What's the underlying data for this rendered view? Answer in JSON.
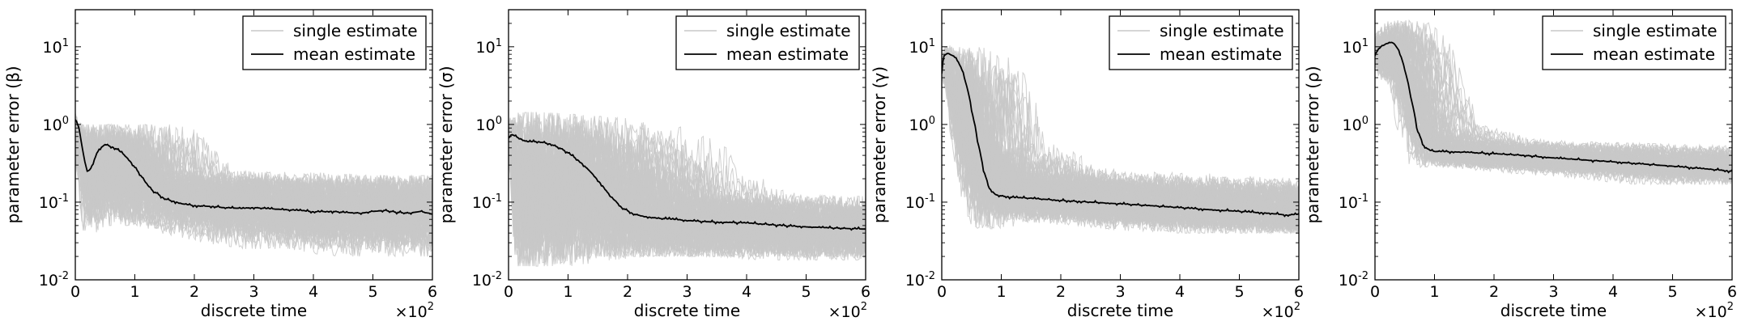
{
  "figure": {
    "xlabel": "discrete time",
    "x_multiplier": "×10",
    "x_multiplier_exp": "2",
    "legend": {
      "single": "single estimate",
      "mean": "mean estimate"
    },
    "colors": {
      "single": "#c8c8c8",
      "mean": "#000000",
      "axes": "#000000"
    }
  },
  "chart_data": [
    {
      "type": "line",
      "ylabel": "parameter error (β)",
      "xlabel": "discrete time",
      "x_ticks": [
        0,
        1,
        2,
        3,
        4,
        5,
        6
      ],
      "xlim": [
        0,
        6
      ],
      "ylim": [
        0.01,
        30
      ],
      "yscale": "log",
      "y_ticks": [
        {
          "value": 0.01,
          "base": "10",
          "exp": "-2"
        },
        {
          "value": 0.1,
          "base": "10",
          "exp": "-1"
        },
        {
          "value": 1,
          "base": "10",
          "exp": "0"
        },
        {
          "value": 10,
          "base": "10",
          "exp": "1"
        }
      ],
      "legend_position": "top-right",
      "series": [
        {
          "name": "mean estimate",
          "x": [
            0,
            0.05,
            0.1,
            0.15,
            0.2,
            0.25,
            0.3,
            0.4,
            0.5,
            0.6,
            0.7,
            0.8,
            0.9,
            1.0,
            1.1,
            1.2,
            1.3,
            1.4,
            1.5,
            1.6,
            1.8,
            2.0,
            2.3,
            2.5,
            2.8,
            3.0,
            3.3,
            3.5,
            3.8,
            4.0,
            4.3,
            4.5,
            4.8,
            5.0,
            5.2,
            5.4,
            5.6,
            5.8,
            6.0
          ],
          "y": [
            1.2,
            0.95,
            0.6,
            0.35,
            0.25,
            0.26,
            0.32,
            0.48,
            0.55,
            0.52,
            0.48,
            0.42,
            0.35,
            0.28,
            0.22,
            0.17,
            0.14,
            0.125,
            0.11,
            0.105,
            0.095,
            0.09,
            0.088,
            0.085,
            0.083,
            0.085,
            0.082,
            0.08,
            0.078,
            0.075,
            0.076,
            0.074,
            0.072,
            0.076,
            0.078,
            0.074,
            0.072,
            0.076,
            0.07
          ]
        }
      ],
      "single_estimates": {
        "name": "single estimate",
        "count": 90,
        "x": [
          0,
          0.1,
          0.15,
          0.2,
          0.3,
          0.5,
          0.7,
          0.9,
          1.1,
          1.3,
          1.5,
          2,
          3,
          4,
          5,
          6
        ],
        "upper": [
          1.4,
          1.0,
          1.0,
          1.0,
          1.0,
          1.0,
          1.0,
          1.0,
          0.9,
          0.5,
          0.25,
          0.25,
          0.22,
          0.2,
          0.2,
          0.22
        ],
        "lower": [
          0.3,
          0.1,
          0.04,
          0.04,
          0.05,
          0.06,
          0.05,
          0.05,
          0.05,
          0.05,
          0.05,
          0.04,
          0.03,
          0.025,
          0.025,
          0.02
        ]
      }
    },
    {
      "type": "line",
      "ylabel": "parameter error (σ)",
      "xlabel": "discrete time",
      "x_ticks": [
        0,
        1,
        2,
        3,
        4,
        5,
        6
      ],
      "xlim": [
        0,
        6
      ],
      "ylim": [
        0.01,
        30
      ],
      "yscale": "log",
      "y_ticks": [
        {
          "value": 0.01,
          "base": "10",
          "exp": "-2"
        },
        {
          "value": 0.1,
          "base": "10",
          "exp": "-1"
        },
        {
          "value": 1,
          "base": "10",
          "exp": "0"
        },
        {
          "value": 10,
          "base": "10",
          "exp": "1"
        }
      ],
      "legend_position": "top-right",
      "series": [
        {
          "name": "mean estimate",
          "x": [
            0,
            0.05,
            0.15,
            0.3,
            0.5,
            0.7,
            0.9,
            1.1,
            1.3,
            1.5,
            1.7,
            1.9,
            2.1,
            2.3,
            2.5,
            2.8,
            3.0,
            3.3,
            3.6,
            4.0,
            4.3,
            4.6,
            5.0,
            5.3,
            5.6,
            6.0
          ],
          "y": [
            0.65,
            0.75,
            0.68,
            0.6,
            0.6,
            0.56,
            0.48,
            0.38,
            0.28,
            0.19,
            0.12,
            0.085,
            0.07,
            0.065,
            0.062,
            0.06,
            0.058,
            0.056,
            0.055,
            0.054,
            0.052,
            0.05,
            0.048,
            0.047,
            0.046,
            0.045
          ]
        }
      ],
      "single_estimates": {
        "name": "single estimate",
        "count": 90,
        "x": [
          0,
          0.1,
          0.3,
          0.6,
          1.0,
          1.4,
          1.8,
          2.2,
          2.6,
          3,
          4,
          5,
          6
        ],
        "upper": [
          1.2,
          1.4,
          1.45,
          1.4,
          1.3,
          1.2,
          0.9,
          0.4,
          0.15,
          0.13,
          0.12,
          0.11,
          0.1
        ],
        "lower": [
          0.3,
          0.015,
          0.015,
          0.015,
          0.018,
          0.02,
          0.02,
          0.02,
          0.02,
          0.02,
          0.02,
          0.02,
          0.018
        ]
      }
    },
    {
      "type": "line",
      "ylabel": "parameter error (γ)",
      "xlabel": "discrete time",
      "x_ticks": [
        0,
        1,
        2,
        3,
        4,
        5,
        6
      ],
      "xlim": [
        0,
        6
      ],
      "ylim": [
        0.01,
        30
      ],
      "yscale": "log",
      "y_ticks": [
        {
          "value": 0.01,
          "base": "10",
          "exp": "-2"
        },
        {
          "value": 0.1,
          "base": "10",
          "exp": "-1"
        },
        {
          "value": 1,
          "base": "10",
          "exp": "0"
        },
        {
          "value": 10,
          "base": "10",
          "exp": "1"
        }
      ],
      "legend_position": "top-right",
      "series": [
        {
          "name": "mean estimate",
          "x": [
            0,
            0.03,
            0.06,
            0.1,
            0.2,
            0.3,
            0.4,
            0.5,
            0.6,
            0.7,
            0.8,
            0.9,
            1.0,
            1.2,
            1.5,
            2.0,
            2.5,
            3.0,
            3.5,
            4.0,
            4.5,
            5.0,
            5.5,
            5.8,
            6.0
          ],
          "y": [
            4.5,
            7.5,
            8.0,
            8.2,
            7.6,
            6.0,
            3.5,
            1.5,
            0.6,
            0.25,
            0.15,
            0.125,
            0.12,
            0.115,
            0.112,
            0.105,
            0.1,
            0.095,
            0.09,
            0.085,
            0.08,
            0.076,
            0.072,
            0.068,
            0.07
          ]
        }
      ],
      "single_estimates": {
        "name": "single estimate",
        "count": 90,
        "x": [
          0,
          0.05,
          0.2,
          0.4,
          0.6,
          0.75,
          0.9,
          1.0,
          1.5,
          2,
          3,
          4,
          5,
          6
        ],
        "upper": [
          6,
          10,
          10.5,
          10,
          9,
          7,
          2,
          0.6,
          0.3,
          0.25,
          0.22,
          0.2,
          0.18,
          0.17
        ],
        "lower": [
          4,
          3,
          0.5,
          0.1,
          0.05,
          0.045,
          0.05,
          0.06,
          0.06,
          0.055,
          0.05,
          0.045,
          0.04,
          0.04
        ]
      }
    },
    {
      "type": "line",
      "ylabel": "parameter error (ρ)",
      "xlabel": "discrete time",
      "x_ticks": [
        0,
        1,
        2,
        3,
        4,
        5,
        6
      ],
      "xlim": [
        0,
        6
      ],
      "ylim": [
        0.01,
        30
      ],
      "yscale": "log",
      "y_ticks": [
        {
          "value": 0.01,
          "base": "10",
          "exp": "-2"
        },
        {
          "value": 0.1,
          "base": "10",
          "exp": "-1"
        },
        {
          "value": 1,
          "base": "10",
          "exp": "0"
        },
        {
          "value": 10,
          "base": "10",
          "exp": "1"
        }
      ],
      "legend_position": "top-right",
      "series": [
        {
          "name": "mean estimate",
          "x": [
            0,
            0.05,
            0.1,
            0.2,
            0.3,
            0.4,
            0.5,
            0.6,
            0.7,
            0.8,
            0.9,
            1.0,
            1.5,
            2.0,
            2.5,
            3.0,
            3.5,
            4.0,
            4.5,
            5.0,
            5.5,
            6.0
          ],
          "y": [
            8,
            9,
            10,
            11,
            11.5,
            9,
            5,
            2.2,
            0.9,
            0.55,
            0.47,
            0.45,
            0.44,
            0.42,
            0.4,
            0.37,
            0.35,
            0.33,
            0.31,
            0.29,
            0.27,
            0.25
          ]
        }
      ],
      "single_estimates": {
        "name": "single estimate",
        "count": 90,
        "x": [
          0,
          0.1,
          0.3,
          0.5,
          0.7,
          0.85,
          1.0,
          1.5,
          2,
          3,
          4,
          5,
          6
        ],
        "upper": [
          14,
          18,
          22,
          21,
          12,
          3,
          1.0,
          0.65,
          0.6,
          0.55,
          0.5,
          0.45,
          0.4
        ],
        "lower": [
          5,
          4,
          3,
          1.0,
          0.35,
          0.3,
          0.28,
          0.28,
          0.27,
          0.24,
          0.22,
          0.2,
          0.17
        ]
      }
    }
  ]
}
